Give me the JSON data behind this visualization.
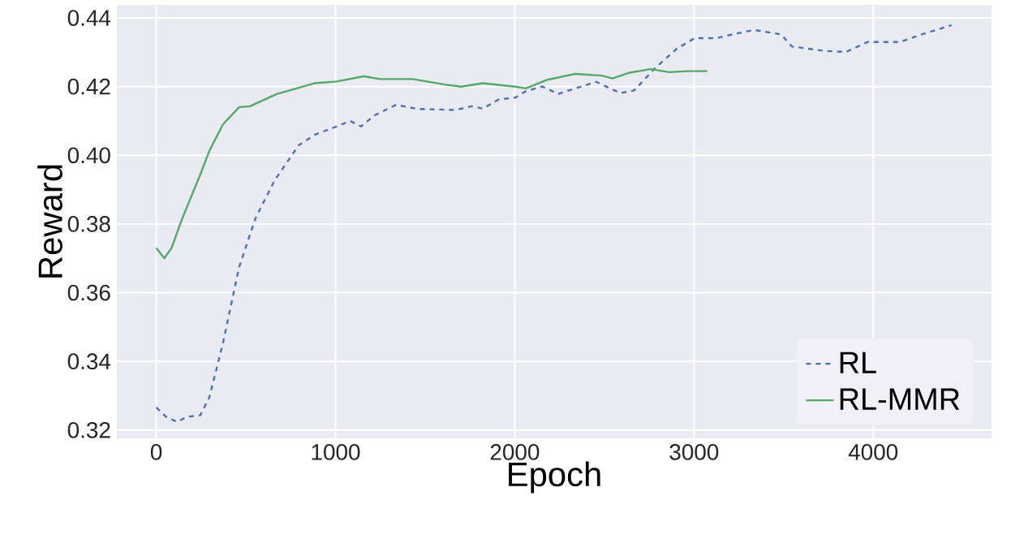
{
  "chart_data": {
    "type": "line",
    "xlabel": "Epoch",
    "ylabel": "Reward",
    "xlim": [
      -220,
      4660
    ],
    "ylim": [
      0.3176,
      0.4438
    ],
    "xticks": [
      0,
      1000,
      2000,
      3000,
      4000
    ],
    "yticks": [
      0.32,
      0.34,
      0.36,
      0.38,
      {
        "value": 0.4,
        "label": "0.40"
      },
      0.42,
      0.44
    ],
    "grid": true,
    "legend": "bottom right",
    "series": [
      {
        "name": "RL",
        "color": "#4c72b0",
        "line_style": "dashed",
        "x": [
          0,
          54,
          115,
          175,
          245,
          296,
          372,
          462,
          553,
          659,
          794,
          885,
          1006,
          1082,
          1142,
          1217,
          1338,
          1459,
          1671,
          1761,
          1822,
          1912,
          2003,
          2063,
          2154,
          2243,
          2454,
          2590,
          2666,
          2787,
          2908,
          3004,
          3124,
          3215,
          3335,
          3486,
          3546,
          3728,
          3848,
          3969,
          4150,
          4271,
          4437
        ],
        "values": [
          0.3266,
          0.3239,
          0.3224,
          0.3239,
          0.3243,
          0.3295,
          0.3453,
          0.3674,
          0.3816,
          0.3926,
          0.4029,
          0.406,
          0.4084,
          0.41,
          0.4084,
          0.4116,
          0.4147,
          0.4135,
          0.4132,
          0.4143,
          0.4136,
          0.4163,
          0.4168,
          0.4187,
          0.42,
          0.4179,
          0.4214,
          0.4181,
          0.4189,
          0.4256,
          0.4312,
          0.4341,
          0.4341,
          0.4352,
          0.4365,
          0.4352,
          0.4317,
          0.4304,
          0.4301,
          0.433,
          0.433,
          0.4352,
          0.4379
        ]
      },
      {
        "name": "RL-MMR",
        "color": "#55a868",
        "line_style": "solid",
        "x": [
          0,
          45,
          85,
          145,
          250,
          296,
          372,
          462,
          523,
          674,
          764,
          885,
          1006,
          1157,
          1248,
          1429,
          1610,
          1701,
          1822,
          2003,
          2062,
          2183,
          2334,
          2486,
          2546,
          2636,
          2757,
          2863,
          2968,
          3074
        ],
        "values": [
          0.373,
          0.37,
          0.373,
          0.3816,
          0.395,
          0.4013,
          0.409,
          0.414,
          0.4143,
          0.4179,
          0.4192,
          0.421,
          0.4215,
          0.423,
          0.4222,
          0.4222,
          0.4206,
          0.42,
          0.421,
          0.42,
          0.4195,
          0.422,
          0.4237,
          0.4232,
          0.4224,
          0.424,
          0.4251,
          0.4242,
          0.4245,
          0.4245
        ]
      }
    ]
  }
}
